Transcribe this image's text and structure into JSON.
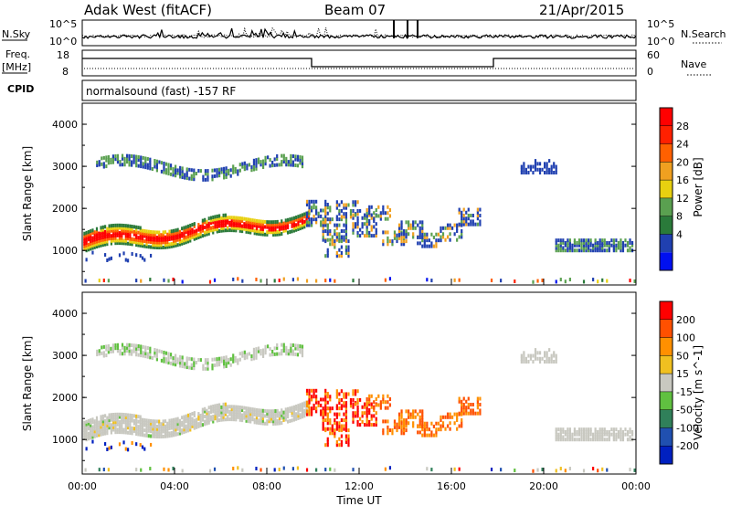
{
  "header": {
    "station": "Adak West (fitACF)",
    "beam": "Beam 07",
    "date": "21/Apr/2015"
  },
  "strip_labels": {
    "nsky": "N.Sky",
    "nsearch": "N.Search",
    "freq_line1": "Freq.",
    "freq_line2": "[MHz]",
    "nave": "Nave",
    "cpid": "CPID",
    "nsky_ticks": [
      "10^5",
      "10^0"
    ],
    "nsearch_ticks": [
      "10^5",
      "10^0"
    ],
    "freq_ticks": [
      "18",
      "8"
    ],
    "nave_ticks": [
      "60",
      "0"
    ],
    "cpid_text": "normalsound (fast) -157 RF"
  },
  "chart_data": [
    {
      "type": "heatmap",
      "panel": "power",
      "ylabel": "Slant Range [km]",
      "ylim": [
        180,
        4500
      ],
      "yticks": [
        1000,
        2000,
        3000,
        4000
      ],
      "xlim": [
        0,
        24
      ],
      "colorbar": {
        "label": "Power [dB]",
        "ticks": [
          "28",
          "24",
          "20",
          "16",
          "12",
          "8",
          "4"
        ],
        "colors": [
          "#0010f0",
          "#2040b0",
          "#2a7a3a",
          "#5aa050",
          "#e8d010",
          "#f0a020",
          "#ff6000",
          "#ff2000",
          "#ff0000"
        ]
      }
    },
    {
      "type": "heatmap",
      "panel": "velocity",
      "ylabel": "Slant Range [km]",
      "ylim": [
        180,
        4500
      ],
      "yticks": [
        1000,
        2000,
        3000,
        4000
      ],
      "xlim": [
        0,
        24
      ],
      "xlabel": "Time UT",
      "xticks": [
        "00:00",
        "04:00",
        "08:00",
        "12:00",
        "16:00",
        "20:00",
        "00:00"
      ],
      "colorbar": {
        "label": "Velocity [m s^-1]",
        "ticks": [
          "200",
          "100",
          "50",
          "15",
          "-15",
          "-50",
          "-100",
          "-200"
        ],
        "colors": [
          "#0020c0",
          "#2050b0",
          "#30805a",
          "#60c040",
          "#c8c8c0",
          "#f0c020",
          "#ff9000",
          "#ff5000",
          "#ff0000"
        ]
      }
    }
  ]
}
